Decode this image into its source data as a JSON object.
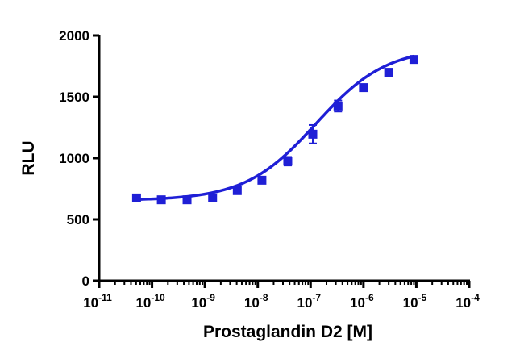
{
  "chart_data": {
    "type": "scatter",
    "title": "",
    "xlabel": "Prostaglandin D2 [M]",
    "ylabel": "RLU",
    "x_scale": "log",
    "xlim": [
      1e-11,
      0.0001
    ],
    "ylim": [
      0,
      2000
    ],
    "x_ticks": [
      {
        "base": "10",
        "exp": "-11",
        "value": 1e-11
      },
      {
        "base": "10",
        "exp": "-10",
        "value": 1e-10
      },
      {
        "base": "10",
        "exp": "-9",
        "value": 1e-09
      },
      {
        "base": "10",
        "exp": "-8",
        "value": 1e-08
      },
      {
        "base": "10",
        "exp": "-7",
        "value": 1e-07
      },
      {
        "base": "10",
        "exp": "-6",
        "value": 1e-06
      },
      {
        "base": "10",
        "exp": "-5",
        "value": 1e-05
      },
      {
        "base": "10",
        "exp": "-4",
        "value": 0.0001
      }
    ],
    "y_ticks": [
      "0",
      "500",
      "1000",
      "1500",
      "2000"
    ],
    "color": "#1f1fd6",
    "grid": false,
    "legend": "none",
    "series": [
      {
        "x": [
          5.1e-11,
          1.5e-10,
          4.6e-10,
          1.4e-09,
          4.1e-09,
          1.2e-08,
          3.7e-08,
          1.1e-07,
          3.3e-07,
          1e-06,
          3e-06,
          9e-06
        ],
        "y": [
          675,
          660,
          660,
          675,
          735,
          820,
          975,
          1195,
          1425,
          1575,
          1700,
          1805
        ],
        "err": [
          8,
          8,
          8,
          8,
          10,
          12,
          35,
          75,
          45,
          15,
          15,
          15
        ]
      }
    ],
    "fit_curve": {
      "model": "sigmoidal dose-response",
      "bottom": 655,
      "top": 1905,
      "logEC50": -6.9,
      "hill": 0.65
    }
  }
}
